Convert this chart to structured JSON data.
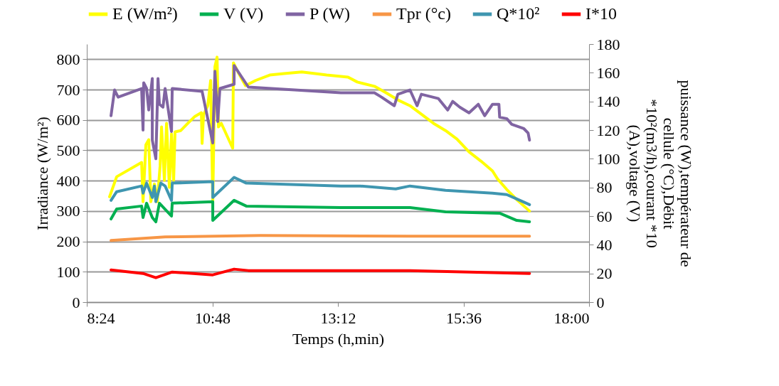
{
  "chart_data": {
    "type": "line",
    "xlabel": "Temps (h,min)",
    "ylabel": "Irradiance (W/m²)",
    "y2label": "puissance (W),températeur de cellule (°C),Débit *10²(m3/h),courant *10 (A),voltage (V)",
    "xlim": [
      8.4,
      18
    ],
    "xticks": [
      {
        "value": 8.4,
        "label": "8:24"
      },
      {
        "value": 10.8,
        "label": "10:48"
      },
      {
        "value": 13.2,
        "label": "13:12"
      },
      {
        "value": 15.6,
        "label": "15:36"
      },
      {
        "value": 18,
        "label": "18:00"
      }
    ],
    "ylim": [
      0,
      850
    ],
    "yticks": [
      0,
      100,
      200,
      300,
      400,
      500,
      600,
      700,
      800
    ],
    "y2lim": [
      0,
      180
    ],
    "y2ticks": [
      0,
      20,
      40,
      60,
      80,
      100,
      120,
      140,
      160,
      180
    ],
    "grid": "y",
    "legend": "top",
    "line_style": "solid",
    "series": [
      {
        "name": "E (W/m²)",
        "color": "#ffff00",
        "x": [
          8.835,
          8.971,
          9.448,
          9.475,
          9.529,
          9.584,
          9.624,
          9.692,
          9.747,
          9.801,
          9.829,
          9.883,
          9.924,
          9.978,
          10.019,
          10.06,
          10.087,
          10.196,
          10.332,
          10.468,
          10.59,
          10.604,
          10.631,
          10.713,
          10.767,
          10.808,
          10.849,
          10.89,
          10.917,
          10.971,
          11.189,
          11.203,
          11.284,
          11.434,
          11.624,
          11.897,
          12.169,
          12.509,
          12.849,
          12.985,
          13.393,
          13.57,
          13.897,
          14.114,
          14.346,
          14.577,
          14.795,
          15.026,
          15.257,
          15.475,
          15.706,
          15.937,
          16.155,
          16.25,
          16.427,
          16.618,
          16.862
        ],
        "values": [
          347,
          413,
          460,
          331,
          518,
          535,
          331,
          389,
          331,
          448,
          577,
          401,
          589,
          378,
          554,
          401,
          561,
          565,
          589,
          612,
          624,
          523,
          617,
          647,
          730,
          331,
          776,
          807,
          577,
          589,
          507,
          788,
          760,
          713,
          730,
          748,
          753,
          758,
          751,
          748,
          741,
          725,
          711,
          690,
          666,
          647,
          619,
          589,
          565,
          537,
          495,
          464,
          432,
          406,
          371,
          338,
          300
        ]
      },
      {
        "name": "V (V)",
        "color": "#00b050",
        "axis": "y2",
        "x": [
          8.863,
          8.971,
          9.448,
          9.475,
          9.543,
          9.652,
          9.72,
          9.788,
          10.019,
          10.033,
          10.808,
          10.808,
          11.216,
          11.448,
          13.257,
          13.985,
          14.577,
          15.257,
          16.291,
          16.618,
          16.862
        ],
        "values": [
          58,
          65,
          67,
          59,
          69,
          59,
          56,
          69,
          60,
          69,
          70,
          57,
          71,
          67,
          66,
          66,
          66,
          63,
          62,
          57,
          56
        ]
      },
      {
        "name": "P (W)",
        "color": "#8064a2",
        "axis": "y2",
        "x": [
          8.863,
          8.931,
          8.999,
          9.448,
          9.475,
          9.488,
          9.543,
          9.584,
          9.652,
          9.652,
          9.72,
          9.761,
          9.788,
          9.856,
          9.897,
          10.019,
          10.033,
          10.604,
          10.808,
          10.849,
          10.903,
          10.944,
          11.216,
          11.216,
          11.488,
          13.257,
          13.897,
          14.033,
          14.278,
          14.346,
          14.577,
          14.713,
          14.795,
          15.121,
          15.298,
          15.393,
          15.529,
          15.706,
          15.883,
          16.005,
          16.155,
          16.277,
          16.291,
          16.427,
          16.522,
          16.754,
          16.835,
          16.862
        ],
        "values": [
          130,
          148,
          143,
          149,
          120,
          153,
          149,
          134,
          156,
          113,
          100,
          156,
          138,
          136,
          149,
          119,
          149,
          147,
          111,
          161,
          126,
          149,
          152,
          165,
          150,
          146,
          146,
          143,
          137,
          145,
          148,
          137,
          145,
          142,
          134,
          140,
          136,
          132,
          138,
          130,
          138,
          138,
          129,
          128,
          124,
          121,
          118,
          113
        ]
      },
      {
        "name": "Tpr (°c)",
        "color": "#f79646",
        "axis": "y2",
        "x": [
          8.863,
          9.897,
          11.72,
          14.577,
          16.862
        ],
        "values": [
          43,
          45.5,
          46.5,
          46,
          46
        ]
      },
      {
        "name": "Q*10²",
        "color": "#3f96b0",
        "axis": "y2",
        "x": [
          8.863,
          8.971,
          9.448,
          9.475,
          9.543,
          9.652,
          9.692,
          9.72,
          9.815,
          9.897,
          10.019,
          10.033,
          10.808,
          10.808,
          11.216,
          11.448,
          13.257,
          13.624,
          14.305,
          14.577,
          15.257,
          16.155,
          16.427,
          16.618,
          16.862
        ],
        "values": [
          71,
          77,
          81,
          76,
          83,
          73,
          81,
          70,
          83,
          81,
          71,
          83,
          84,
          73,
          87,
          83,
          81,
          81,
          79,
          81,
          78,
          76,
          75,
          72,
          68
        ]
      },
      {
        "name": "I*10",
        "color": "#ff0000",
        "axis": "y2",
        "x": [
          8.863,
          9.475,
          9.72,
          10.033,
          10.808,
          11.216,
          11.488,
          14.577,
          16.862
        ],
        "values": [
          22.4,
          20,
          17,
          21,
          19,
          23,
          22,
          22,
          20
        ]
      }
    ]
  }
}
